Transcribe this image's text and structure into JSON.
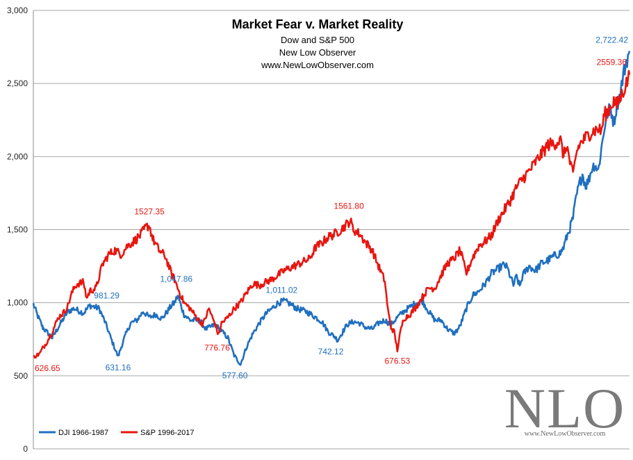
{
  "chart_data": {
    "type": "line",
    "title": "Market Fear v. Market Reality",
    "subtitle_lines": [
      "Dow and S&P 500",
      "New Low Observer",
      "www.NewLowObserver.com"
    ],
    "ylim": [
      0,
      3000
    ],
    "y_ticks": [
      0,
      500,
      1000,
      1500,
      2000,
      2500,
      3000
    ],
    "y_tick_labels": [
      "0",
      "500",
      "1,000",
      "1,500",
      "2,000",
      "2,500",
      "3,000"
    ],
    "grid": true,
    "legend_position": "bottom-left",
    "colors": {
      "dji": "#1f6fbf",
      "sp": "#e8150f",
      "grid": "#a6a6a6",
      "axis": "#888888"
    },
    "series": [
      {
        "name": "DJI 1966-1987",
        "color": "#1f6fbf",
        "anchors": [
          [
            0,
            990
          ],
          [
            1.2,
            920
          ],
          [
            3,
            830
          ],
          [
            6,
            760
          ],
          [
            9,
            870
          ],
          [
            11,
            940
          ],
          [
            13,
            960
          ],
          [
            16,
            930
          ],
          [
            18,
            981.29
          ],
          [
            21,
            960
          ],
          [
            23,
            860
          ],
          [
            25,
            740
          ],
          [
            27,
            631.16
          ],
          [
            29,
            760
          ],
          [
            31,
            860
          ],
          [
            33,
            880
          ],
          [
            35,
            940
          ],
          [
            37,
            900
          ],
          [
            39,
            920
          ],
          [
            41,
            890
          ],
          [
            44,
            980
          ],
          [
            45,
            1000
          ],
          [
            46,
            1047.86
          ],
          [
            48,
            920
          ],
          [
            50,
            880
          ],
          [
            53,
            880
          ],
          [
            55,
            820
          ],
          [
            58,
            850
          ],
          [
            62,
            760
          ],
          [
            64,
            640
          ],
          [
            66,
            577.6
          ],
          [
            68,
            700
          ],
          [
            70,
            790
          ],
          [
            72,
            860
          ],
          [
            74,
            920
          ],
          [
            76,
            960
          ],
          [
            78,
            1000
          ],
          [
            80,
            1011.02
          ],
          [
            82,
            990
          ],
          [
            84,
            960
          ],
          [
            87,
            940
          ],
          [
            90,
            900
          ],
          [
            92,
            870
          ],
          [
            94,
            800
          ],
          [
            96,
            770
          ],
          [
            97,
            742.12
          ],
          [
            98,
            780
          ],
          [
            100,
            850
          ],
          [
            102,
            870
          ],
          [
            104,
            860
          ],
          [
            106,
            830
          ],
          [
            108,
            820
          ],
          [
            110,
            860
          ],
          [
            112,
            880
          ],
          [
            114,
            850
          ],
          [
            116,
            900
          ],
          [
            118,
            940
          ],
          [
            120,
            970
          ],
          [
            122,
            1000
          ],
          [
            124,
            1010
          ],
          [
            126,
            940
          ],
          [
            128,
            880
          ],
          [
            130,
            880
          ],
          [
            132,
            820
          ],
          [
            134,
            790
          ],
          [
            135,
            810
          ],
          [
            136,
            840
          ],
          [
            138,
            960
          ],
          [
            140,
            1050
          ],
          [
            142,
            1080
          ],
          [
            144,
            1130
          ],
          [
            146,
            1200
          ],
          [
            148,
            1230
          ],
          [
            150,
            1260
          ],
          [
            151,
            1240
          ],
          [
            153,
            1120
          ],
          [
            154,
            1180
          ],
          [
            155,
            1110
          ],
          [
            156,
            1190
          ],
          [
            158,
            1250
          ],
          [
            160,
            1220
          ],
          [
            162,
            1270
          ],
          [
            164,
            1290
          ],
          [
            166,
            1320
          ],
          [
            168,
            1340
          ],
          [
            169,
            1380
          ],
          [
            170,
            1450
          ],
          [
            171,
            1510
          ],
          [
            172,
            1580
          ],
          [
            173,
            1720
          ],
          [
            174,
            1810
          ],
          [
            175,
            1880
          ],
          [
            176,
            1800
          ],
          [
            177,
            1840
          ],
          [
            178,
            1920
          ],
          [
            179,
            1950
          ],
          [
            180,
            1900
          ],
          [
            181,
            2050
          ],
          [
            182,
            2200
          ],
          [
            183,
            2300
          ],
          [
            184,
            2330
          ],
          [
            185,
            2230
          ],
          [
            186,
            2360
          ],
          [
            187,
            2420
          ],
          [
            188,
            2560
          ],
          [
            189,
            2650
          ],
          [
            190,
            2722.42
          ]
        ]
      },
      {
        "name": "S&P 1996-2017",
        "color": "#e8150f",
        "anchors": [
          [
            0,
            626.65
          ],
          [
            1,
            640
          ],
          [
            2,
            650
          ],
          [
            3,
            690
          ],
          [
            4,
            720
          ],
          [
            6,
            800
          ],
          [
            8,
            900
          ],
          [
            10,
            940
          ],
          [
            11,
            980
          ],
          [
            12,
            1050
          ],
          [
            13,
            1100
          ],
          [
            14,
            1130
          ],
          [
            16,
            1140
          ],
          [
            17,
            1030
          ],
          [
            18,
            1080
          ],
          [
            20,
            1100
          ],
          [
            22,
            1260
          ],
          [
            24,
            1330
          ],
          [
            26,
            1360
          ],
          [
            28,
            1330
          ],
          [
            30,
            1390
          ],
          [
            32,
            1420
          ],
          [
            34,
            1460
          ],
          [
            36,
            1520
          ],
          [
            37,
            1527.35
          ],
          [
            38,
            1440
          ],
          [
            40,
            1360
          ],
          [
            42,
            1320
          ],
          [
            44,
            1200
          ],
          [
            45,
            1160
          ],
          [
            46,
            1100
          ],
          [
            48,
            1000
          ],
          [
            50,
            960
          ],
          [
            52,
            900
          ],
          [
            54,
            850
          ],
          [
            56,
            960
          ],
          [
            57,
            900
          ],
          [
            58,
            850
          ],
          [
            59,
            776.76
          ],
          [
            60,
            860
          ],
          [
            62,
            900
          ],
          [
            64,
            960
          ],
          [
            66,
            1000
          ],
          [
            68,
            1070
          ],
          [
            70,
            1130
          ],
          [
            72,
            1120
          ],
          [
            74,
            1140
          ],
          [
            76,
            1160
          ],
          [
            78,
            1190
          ],
          [
            80,
            1220
          ],
          [
            82,
            1240
          ],
          [
            84,
            1260
          ],
          [
            86,
            1280
          ],
          [
            88,
            1300
          ],
          [
            90,
            1380
          ],
          [
            92,
            1410
          ],
          [
            94,
            1450
          ],
          [
            96,
            1470
          ],
          [
            98,
            1500
          ],
          [
            100,
            1540
          ],
          [
            101,
            1561.8
          ],
          [
            102,
            1500
          ],
          [
            104,
            1470
          ],
          [
            106,
            1410
          ],
          [
            108,
            1360
          ],
          [
            110,
            1250
          ],
          [
            112,
            1150
          ],
          [
            113,
            950
          ],
          [
            114,
            830
          ],
          [
            115,
            800
          ],
          [
            116,
            676.53
          ],
          [
            117,
            800
          ],
          [
            118,
            890
          ],
          [
            120,
            920
          ],
          [
            122,
            970
          ],
          [
            124,
            1040
          ],
          [
            126,
            1100
          ],
          [
            128,
            1100
          ],
          [
            130,
            1190
          ],
          [
            132,
            1270
          ],
          [
            134,
            1300
          ],
          [
            136,
            1360
          ],
          [
            137,
            1280
          ],
          [
            138,
            1200
          ],
          [
            140,
            1310
          ],
          [
            142,
            1390
          ],
          [
            144,
            1420
          ],
          [
            146,
            1460
          ],
          [
            148,
            1560
          ],
          [
            150,
            1630
          ],
          [
            152,
            1700
          ],
          [
            154,
            1790
          ],
          [
            156,
            1850
          ],
          [
            158,
            1900
          ],
          [
            160,
            1960
          ],
          [
            162,
            2020
          ],
          [
            164,
            2080
          ],
          [
            166,
            2090
          ],
          [
            168,
            2110
          ],
          [
            169,
            2000
          ],
          [
            170,
            2080
          ],
          [
            171,
            1960
          ],
          [
            172,
            1870
          ],
          [
            173,
            2020
          ],
          [
            174,
            2080
          ],
          [
            176,
            2130
          ],
          [
            178,
            2170
          ],
          [
            180,
            2190
          ],
          [
            181,
            2170
          ],
          [
            182,
            2290
          ],
          [
            183,
            2300
          ],
          [
            184,
            2350
          ],
          [
            185,
            2380
          ],
          [
            186,
            2350
          ],
          [
            187,
            2400
          ],
          [
            188,
            2450
          ],
          [
            189,
            2500
          ],
          [
            190,
            2559.36
          ]
        ]
      }
    ],
    "annotations": [
      {
        "text": "626.65",
        "series": 1,
        "x": 0,
        "y": 626.65
      },
      {
        "text": "981.29",
        "series": 0,
        "x": 18,
        "y": 981.29
      },
      {
        "text": "631.16",
        "series": 0,
        "x": 27,
        "y": 631.16
      },
      {
        "text": "1527.35",
        "series": 1,
        "x": 37,
        "y": 1527.35
      },
      {
        "text": "1,047.86",
        "series": 0,
        "x": 46,
        "y": 1047.86
      },
      {
        "text": "776.76",
        "series": 1,
        "x": 59,
        "y": 776.76
      },
      {
        "text": "577.60",
        "series": 0,
        "x": 66,
        "y": 577.6
      },
      {
        "text": "1,011.02",
        "series": 0,
        "x": 80,
        "y": 1011.02
      },
      {
        "text": "1561.80",
        "series": 1,
        "x": 101,
        "y": 1561.8
      },
      {
        "text": "742.12",
        "series": 0,
        "x": 97,
        "y": 742.12
      },
      {
        "text": "676.53",
        "series": 1,
        "x": 116,
        "y": 676.53
      },
      {
        "text": "2,722.42",
        "series": 0,
        "x": 190,
        "y": 2722.42
      },
      {
        "text": "2559.36",
        "series": 1,
        "x": 190,
        "y": 2559.36
      }
    ]
  },
  "logo": {
    "text": "NLO",
    "url_text": "www.NewLowObserver.com"
  }
}
